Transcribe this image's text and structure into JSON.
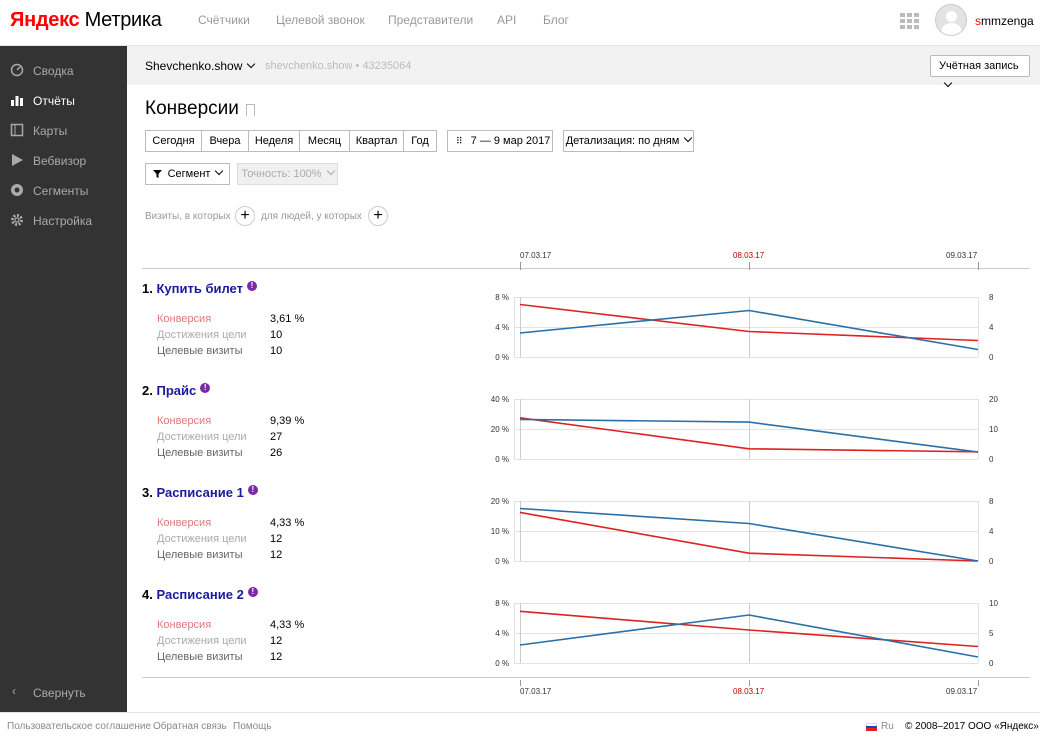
{
  "header": {
    "logo_brand": "Яндекс",
    "logo_product": " Метрика",
    "nav": [
      "Счётчики",
      "Целевой звонок",
      "Представители",
      "API",
      "Блог"
    ],
    "username_first": "s",
    "username_rest": "mmzenga"
  },
  "sidebar": {
    "items": [
      {
        "label": "Сводка",
        "icon": "gauge-icon"
      },
      {
        "label": "Отчёты",
        "icon": "bar-chart-icon"
      },
      {
        "label": "Карты",
        "icon": "map-icon"
      },
      {
        "label": "Вебвизор",
        "icon": "play-icon"
      },
      {
        "label": "Сегменты",
        "icon": "pie-icon"
      },
      {
        "label": "Настройка",
        "icon": "gear-icon"
      }
    ],
    "collapse_label": "Свернуть"
  },
  "subheader": {
    "site_name": "Shevchenko.show",
    "site_host": "shevchenko.show",
    "counter_sep": "•",
    "counter_id": "43235064",
    "account_label": "Учётная запись"
  },
  "page_title": "Конверсии",
  "periods": [
    "Сегодня",
    "Вчера",
    "Неделя",
    "Месяц",
    "Квартал",
    "Год"
  ],
  "date_range": "7 — 9 мар 2017",
  "detail_label": "Детализация: по дням",
  "segment_label": "Сегмент",
  "accuracy_label": "Точность: 100%",
  "filter": {
    "visits_label": "Визиты, в которых",
    "people_label": "для людей, у которых"
  },
  "metric_labels": {
    "conversion": "Конверсия",
    "reaches": "Достижения цели",
    "visits": "Целевые визиты"
  },
  "goals": [
    {
      "num": "1.",
      "name": "Купить билет",
      "conversion": "3,61 %",
      "reaches": "10",
      "visits": "10"
    },
    {
      "num": "2.",
      "name": "Прайс",
      "conversion": "9,39 %",
      "reaches": "27",
      "visits": "26"
    },
    {
      "num": "3.",
      "name": "Расписание 1",
      "conversion": "4,33 %",
      "reaches": "12",
      "visits": "12"
    },
    {
      "num": "4.",
      "name": "Расписание 2",
      "conversion": "4,33 %",
      "reaches": "12",
      "visits": "12"
    }
  ],
  "chart_data": {
    "type": "line",
    "x": [
      "07.03.17",
      "08.03.17",
      "09.03.17"
    ],
    "highlighted_x": "08.03.17",
    "colors": {
      "conversion": "#d22",
      "visits": "#2a6fa8"
    },
    "charts": [
      {
        "left_ticks": [
          "8 %",
          "4 %",
          "0 %"
        ],
        "left_max": 8,
        "right_ticks": [
          "8",
          "4",
          "0"
        ],
        "right_max": 8,
        "series": [
          {
            "key": "conversion",
            "axis": "left",
            "values": [
              7.0,
              3.4,
              2.2
            ]
          },
          {
            "key": "visits",
            "axis": "right",
            "values": [
              3.2,
              6.2,
              1.0
            ]
          }
        ]
      },
      {
        "left_ticks": [
          "40 %",
          "20 %",
          "0 %"
        ],
        "left_max": 40,
        "right_ticks": [
          "20",
          "10",
          "0"
        ],
        "right_max": 20,
        "series": [
          {
            "key": "conversion",
            "axis": "left",
            "values": [
              27.5,
              6.8,
              4.8
            ]
          },
          {
            "key": "visits",
            "axis": "right",
            "values": [
              13.2,
              12.3,
              2.3
            ]
          }
        ]
      },
      {
        "left_ticks": [
          "20 %",
          "10 %",
          "0 %"
        ],
        "left_max": 20,
        "right_ticks": [
          "8",
          "4",
          "0"
        ],
        "right_max": 8,
        "series": [
          {
            "key": "conversion",
            "axis": "left",
            "values": [
              16.2,
              2.6,
              0.0
            ]
          },
          {
            "key": "visits",
            "axis": "right",
            "values": [
              7.0,
              5.0,
              0.0
            ]
          }
        ]
      },
      {
        "left_ticks": [
          "8 %",
          "4 %",
          "0 %"
        ],
        "left_max": 8,
        "right_ticks": [
          "10",
          "5",
          "0"
        ],
        "right_max": 10,
        "series": [
          {
            "key": "conversion",
            "axis": "left",
            "values": [
              6.9,
              4.4,
              2.2
            ]
          },
          {
            "key": "visits",
            "axis": "right",
            "values": [
              3.0,
              8.0,
              1.0
            ]
          }
        ]
      }
    ]
  },
  "footer": {
    "links": [
      "Пользовательское соглашение",
      "Обратная связь",
      "Помощь"
    ],
    "lang": "Ru",
    "copyright": "© 2008–2017  ООО «Яндекс»"
  }
}
